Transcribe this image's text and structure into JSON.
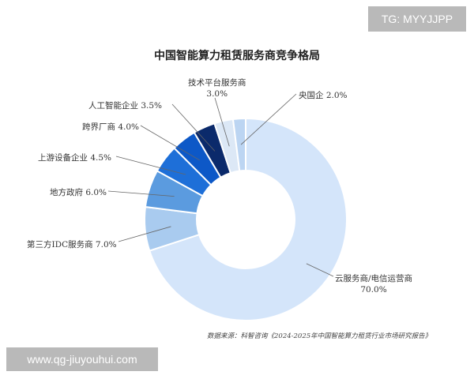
{
  "chart_data": {
    "type": "pie",
    "title": "中国智能算力租赁服务商竞争格局",
    "slices": [
      {
        "label": "云服务商/电信运营商",
        "value": 70.0,
        "color": "#d4e5fa"
      },
      {
        "label": "第三方IDC服务商",
        "value": 7.0,
        "color": "#a9cbef"
      },
      {
        "label": "地方政府",
        "value": 6.0,
        "color": "#5b9bdf"
      },
      {
        "label": "上游设备企业",
        "value": 4.5,
        "color": "#1e6fd8"
      },
      {
        "label": "跨界厂商",
        "value": 4.0,
        "color": "#0d58c7"
      },
      {
        "label": "人工智能企业",
        "value": 3.5,
        "color": "#0b2a6b"
      },
      {
        "label": "技术平台服务商",
        "value": 3.0,
        "color": "#dce8f6"
      },
      {
        "label": "央国企",
        "value": 2.0,
        "color": "#bcd5f2"
      }
    ],
    "legend": "none",
    "grid": false
  },
  "labels": {
    "cloud": {
      "line1": "云服务商/电信运营商",
      "line2": "70.0%"
    },
    "idc": "第三方IDC服务商 7.0%",
    "gov": "地方政府 6.0%",
    "upstream": "上游设备企业 4.5%",
    "crossover": "跨界厂商 4.0%",
    "ai": "人工智能企业 3.5%",
    "tech": {
      "line1": "技术平台服务商",
      "line2": "3.0%"
    },
    "soe": "央国企 2.0%"
  },
  "source_note": "数据来源：科智咨询《2024-2025年中国智能算力租赁行业市场研究报告》",
  "watermark_top": "TG: MYYJJPP",
  "watermark_bottom": "www.qg-jiuyouhui.com"
}
